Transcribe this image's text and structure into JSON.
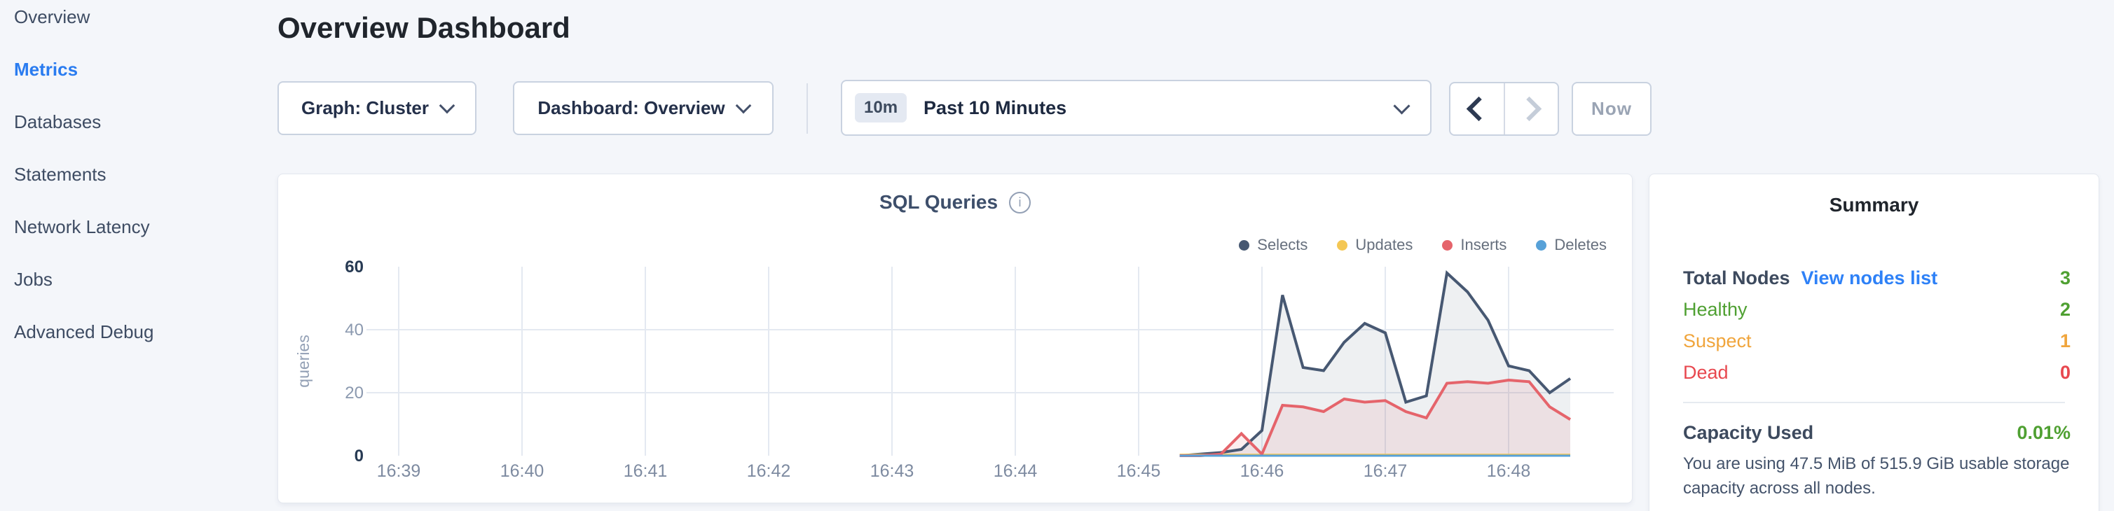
{
  "sidebar": {
    "active_color": "#2a7cf0",
    "items": [
      {
        "label": "Overview",
        "active": false
      },
      {
        "label": "Metrics",
        "active": true
      },
      {
        "label": "Databases",
        "active": false
      },
      {
        "label": "Statements",
        "active": false
      },
      {
        "label": "Network Latency",
        "active": false
      },
      {
        "label": "Jobs",
        "active": false
      },
      {
        "label": "Advanced Debug",
        "active": false
      }
    ]
  },
  "header": {
    "title": "Overview Dashboard"
  },
  "toolbar": {
    "graph_dropdown_label": "Graph: Cluster",
    "dashboard_dropdown_label": "Dashboard: Overview",
    "time_range_badge": "10m",
    "time_range_label": "Past 10 Minutes",
    "now_button_label": "Now"
  },
  "chart_card": {
    "info_icon_glyph": "i"
  },
  "chart_data": {
    "type": "area",
    "title": "SQL Queries",
    "ylabel": "queries",
    "ylim": [
      0,
      60
    ],
    "yticks": [
      0,
      20,
      40,
      60
    ],
    "ytick_emphasis": [
      0,
      60
    ],
    "x_tick_labels": [
      "16:39",
      "16:40",
      "16:41",
      "16:42",
      "16:43",
      "16:44",
      "16:45",
      "16:46",
      "16:47",
      "16:48"
    ],
    "grid": true,
    "legend_position": "top-right",
    "x_times": [
      "16:45:20",
      "16:45:30",
      "16:45:40",
      "16:45:50",
      "16:46:00",
      "16:46:10",
      "16:46:20",
      "16:46:30",
      "16:46:40",
      "16:46:50",
      "16:47:00",
      "16:47:10",
      "16:47:20",
      "16:47:30",
      "16:47:40",
      "16:47:50",
      "16:48:00",
      "16:48:10",
      "16:48:20",
      "16:48:30"
    ],
    "series": [
      {
        "name": "Selects",
        "color": "#475872",
        "fill": "rgba(71,88,114,0.09)",
        "line_width": 4,
        "values": [
          0,
          0.5,
          1,
          2,
          8,
          51,
          28,
          27,
          36,
          42,
          39,
          17,
          19,
          58,
          52,
          43,
          28.5,
          27,
          20,
          24.5
        ]
      },
      {
        "name": "Updates",
        "color": "#f4c754",
        "fill": null,
        "line_width": 3,
        "values": [
          0.3,
          0.3,
          0.3,
          0.3,
          0.3,
          0.3,
          0.3,
          0.3,
          0.3,
          0.3,
          0.3,
          0.3,
          0.3,
          0.3,
          0.3,
          0.3,
          0.3,
          0.3,
          0.3,
          0.3
        ]
      },
      {
        "name": "Inserts",
        "color": "#e5646b",
        "fill": "rgba(229,100,107,0.11)",
        "line_width": 4,
        "values": [
          0,
          0,
          0.5,
          7,
          0.5,
          16,
          15.5,
          14,
          18,
          17,
          17.5,
          14,
          12,
          23,
          23.5,
          23,
          24,
          23.5,
          15.5,
          11.5
        ]
      },
      {
        "name": "Deletes",
        "color": "#57a1d8",
        "fill": null,
        "line_width": 3,
        "values": [
          0,
          0,
          0,
          0,
          0,
          0,
          0,
          0,
          0,
          0,
          0,
          0,
          0,
          0,
          0,
          0,
          0,
          0,
          0,
          0
        ]
      }
    ]
  },
  "summary": {
    "title": "Summary",
    "total_nodes_label": "Total Nodes",
    "view_nodes_link": "View nodes list",
    "total_nodes_value": "3",
    "rows": [
      {
        "label": "Healthy",
        "value": "2",
        "color": "#4fa032"
      },
      {
        "label": "Suspect",
        "value": "1",
        "color": "#f0a53c"
      },
      {
        "label": "Dead",
        "value": "0",
        "color": "#e8484f"
      }
    ],
    "capacity_label": "Capacity Used",
    "capacity_value": "0.01%",
    "capacity_description": "You are using 47.5 MiB of 515.9 GiB usable storage capacity across all nodes.",
    "colors": {
      "green": "#4fa032",
      "link": "#2e81f7"
    }
  }
}
